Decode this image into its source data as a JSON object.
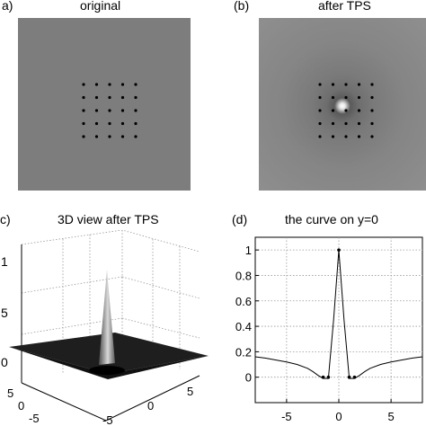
{
  "panels": {
    "a": {
      "letter": "a)",
      "title": "original"
    },
    "b": {
      "letter": "(b)",
      "title": "after TPS"
    },
    "c": {
      "letter": "c)",
      "title": "3D view after TPS",
      "z_ticks": [
        "1",
        "5",
        "0"
      ],
      "x_ticks": [
        "5",
        "0",
        "-5"
      ],
      "y_ticks": [
        "-5",
        "0",
        "5"
      ]
    },
    "d": {
      "letter": "(d)",
      "title": "the curve on y=0"
    }
  },
  "grid_points": {
    "rows": 5,
    "cols": 5
  },
  "colors": {
    "background_gray": "#7d7d7d",
    "panel_b_gray": "#8c8c8c",
    "curve": "#000000"
  },
  "chart_data": {
    "type": "line",
    "title": "the curve on y=0",
    "xlabel": "",
    "ylabel": "",
    "xlim": [
      -8,
      8
    ],
    "ylim": [
      -0.2,
      1.1
    ],
    "x_ticks": [
      "-5",
      "0",
      "5"
    ],
    "y_ticks": [
      "1",
      "0.8",
      "0.6",
      "0.4",
      "0.2",
      "0"
    ],
    "grid": true,
    "series": [
      {
        "x": [
          -8,
          -7,
          -6,
          -5,
          -4,
          -3,
          -2.5,
          -2,
          -1.5,
          -1,
          -0.5,
          0,
          0.5,
          1,
          1.5,
          2,
          2.5,
          3,
          4,
          5,
          6,
          7,
          8
        ],
        "y": [
          0.16,
          0.15,
          0.135,
          0.12,
          0.1,
          0.07,
          0.045,
          0.015,
          -0.01,
          -0.01,
          0.45,
          1.0,
          0.45,
          -0.01,
          -0.01,
          0.015,
          0.045,
          0.07,
          0.1,
          0.12,
          0.135,
          0.15,
          0.16
        ]
      }
    ],
    "markers": {
      "x": [
        -1.5,
        -1,
        0,
        1,
        1.5
      ],
      "y": [
        0,
        0,
        1,
        0,
        0
      ]
    }
  }
}
